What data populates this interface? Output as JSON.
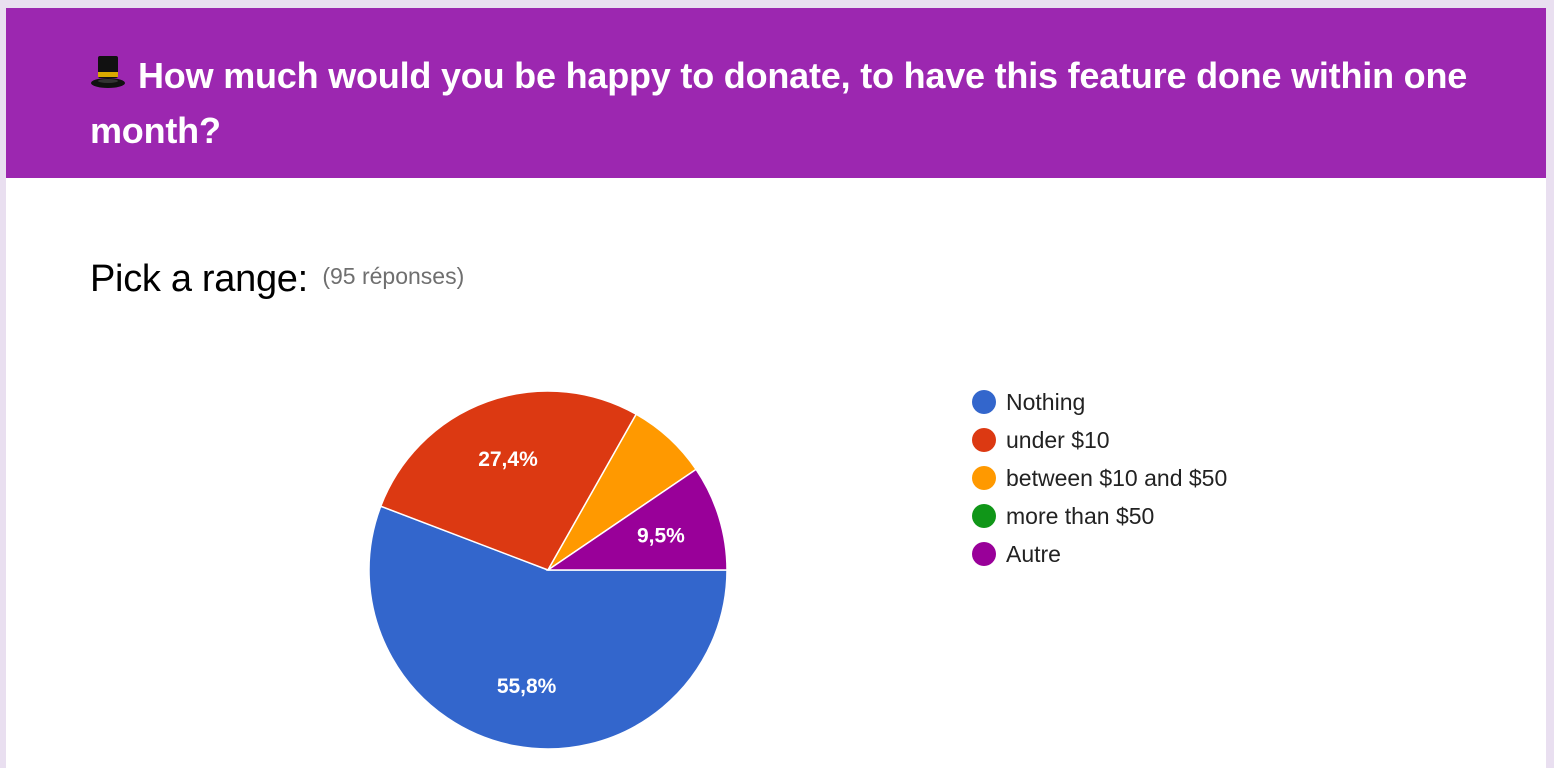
{
  "header": {
    "title": "How much would you be happy to donate, to have this feature done within one month?",
    "icon": "top-hat-icon",
    "background_color": "#9c27b0"
  },
  "question": {
    "title": "Pick a range:",
    "responses": "(95 réponses)"
  },
  "chart_data": {
    "type": "pie",
    "title": "",
    "legend_position": "right",
    "series": [
      {
        "name": "Nothing",
        "value": 55.8,
        "color": "#3366cc",
        "label": "55,8%"
      },
      {
        "name": "under $10",
        "value": 27.4,
        "color": "#dc3912",
        "label": "27,4%"
      },
      {
        "name": "between $10 and $50",
        "value": 7.3,
        "color": "#ff9900",
        "label": ""
      },
      {
        "name": "more than $50",
        "value": 0,
        "color": "#109618",
        "label": ""
      },
      {
        "name": "Autre",
        "value": 9.5,
        "color": "#990099",
        "label": "9,5%"
      }
    ]
  }
}
